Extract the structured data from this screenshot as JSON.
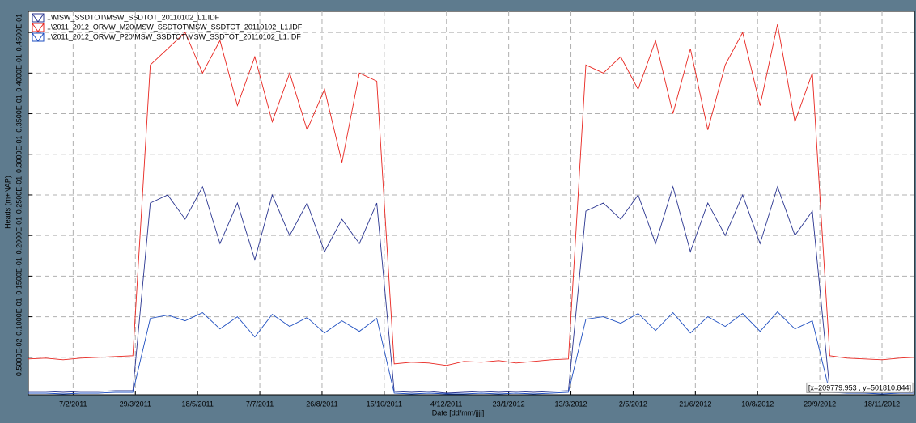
{
  "chart_data": {
    "type": "line",
    "x_label": "Date [dd/mm/jjjj]",
    "y_label": "Heads (m+NAP)",
    "annotation": "[x=209779.953 , y=501810.844]",
    "grid": true,
    "legend": "top-left",
    "xlim": [
      "2/1/2011",
      "14/12/2012"
    ],
    "xticks": [
      "7/2/2011",
      "29/3/2011",
      "18/5/2011",
      "7/7/2011",
      "26/8/2011",
      "15/10/2011",
      "4/12/2011",
      "23/1/2012",
      "13/3/2012",
      "2/5/2012",
      "21/6/2012",
      "10/8/2012",
      "29/9/2012",
      "18/11/2012"
    ],
    "ylim": [
      0.0004,
      0.0476
    ],
    "yticks": [
      {
        "value": 0.005,
        "label": "0.5000E-02"
      },
      {
        "value": 0.01,
        "label": "0.1000E-01"
      },
      {
        "value": 0.015,
        "label": "0.1500E-01"
      },
      {
        "value": 0.02,
        "label": "0.2000E-01"
      },
      {
        "value": 0.025,
        "label": "0.2500E-01"
      },
      {
        "value": 0.03,
        "label": "0.3000E-01"
      },
      {
        "value": 0.035,
        "label": "0.3500E-01"
      },
      {
        "value": 0.04,
        "label": "0.4000E-01"
      },
      {
        "value": 0.045,
        "label": "0.4500E-01"
      }
    ],
    "x": [
      "2/1/2011",
      "16/1/2011",
      "30/1/2011",
      "13/2/2011",
      "27/2/2011",
      "13/3/2011",
      "27/3/2011",
      "10/4/2011",
      "24/4/2011",
      "8/5/2011",
      "22/5/2011",
      "5/6/2011",
      "19/6/2011",
      "3/7/2011",
      "17/7/2011",
      "31/7/2011",
      "14/8/2011",
      "28/8/2011",
      "11/9/2011",
      "25/9/2011",
      "9/10/2011",
      "23/10/2011",
      "6/11/2011",
      "20/11/2011",
      "4/12/2011",
      "18/12/2011",
      "1/1/2012",
      "15/1/2012",
      "29/1/2012",
      "12/2/2012",
      "26/2/2012",
      "11/3/2012",
      "25/3/2012",
      "8/4/2012",
      "22/4/2012",
      "6/5/2012",
      "20/5/2012",
      "3/6/2012",
      "17/6/2012",
      "1/7/2012",
      "15/7/2012",
      "29/7/2012",
      "12/8/2012",
      "26/8/2012",
      "9/9/2012",
      "23/9/2012",
      "7/10/2012",
      "21/10/2012",
      "4/11/2012",
      "18/11/2012",
      "2/12/2012",
      "14/12/2012"
    ],
    "series": [
      {
        "name": "..\\MSW_SSDTOT\\MSW_SSDTOT_20110102_L1.IDF",
        "color": "#2a3590",
        "values": [
          0.0008,
          0.0008,
          0.0007,
          0.0008,
          0.0008,
          0.0009,
          0.0009,
          0.024,
          0.025,
          0.022,
          0.026,
          0.019,
          0.024,
          0.017,
          0.025,
          0.02,
          0.024,
          0.018,
          0.022,
          0.019,
          0.024,
          0.0008,
          0.0007,
          0.0008,
          0.0006,
          0.0007,
          0.0008,
          0.0007,
          0.0008,
          0.0007,
          0.0008,
          0.0009,
          0.023,
          0.024,
          0.022,
          0.025,
          0.019,
          0.026,
          0.018,
          0.024,
          0.02,
          0.025,
          0.019,
          0.026,
          0.02,
          0.023,
          0.0009,
          0.0008,
          0.0008,
          0.0007,
          0.0008,
          0.0008
        ]
      },
      {
        "name": "..\\2011_2012_ORVW_M20\\MSW_SSDTOT\\MSW_SSDTOT_20110102_L1.IDF",
        "color": "#e8251f",
        "values": [
          0.0048,
          0.0049,
          0.0047,
          0.0049,
          0.005,
          0.0051,
          0.0052,
          0.041,
          0.043,
          0.045,
          0.04,
          0.044,
          0.036,
          0.042,
          0.034,
          0.04,
          0.033,
          0.038,
          0.029,
          0.04,
          0.039,
          0.0042,
          0.0044,
          0.0043,
          0.004,
          0.0045,
          0.0044,
          0.0046,
          0.0043,
          0.0045,
          0.0047,
          0.0048,
          0.041,
          0.04,
          0.042,
          0.038,
          0.044,
          0.035,
          0.043,
          0.033,
          0.041,
          0.045,
          0.036,
          0.046,
          0.034,
          0.04,
          0.0052,
          0.0049,
          0.0048,
          0.0047,
          0.0049,
          0.005
        ]
      },
      {
        "name": "..\\2011_2012_ORVW_P20\\MSW_SSDTOT\\MSW_SSDTOT_20110102_L1.IDF",
        "color": "#1f4fc0",
        "values": [
          0.0006,
          0.0006,
          0.0005,
          0.0006,
          0.0006,
          0.0007,
          0.0007,
          0.0098,
          0.0102,
          0.0095,
          0.0105,
          0.0085,
          0.01,
          0.0075,
          0.0103,
          0.0088,
          0.0099,
          0.008,
          0.0095,
          0.0082,
          0.0098,
          0.0006,
          0.0005,
          0.0006,
          0.0005,
          0.0005,
          0.0006,
          0.0005,
          0.0006,
          0.0005,
          0.0006,
          0.0007,
          0.0097,
          0.01,
          0.0092,
          0.0104,
          0.0083,
          0.0105,
          0.008,
          0.01,
          0.0088,
          0.0104,
          0.0082,
          0.0106,
          0.0085,
          0.0095,
          0.0007,
          0.0006,
          0.0006,
          0.0005,
          0.0006,
          0.0006
        ]
      }
    ]
  }
}
